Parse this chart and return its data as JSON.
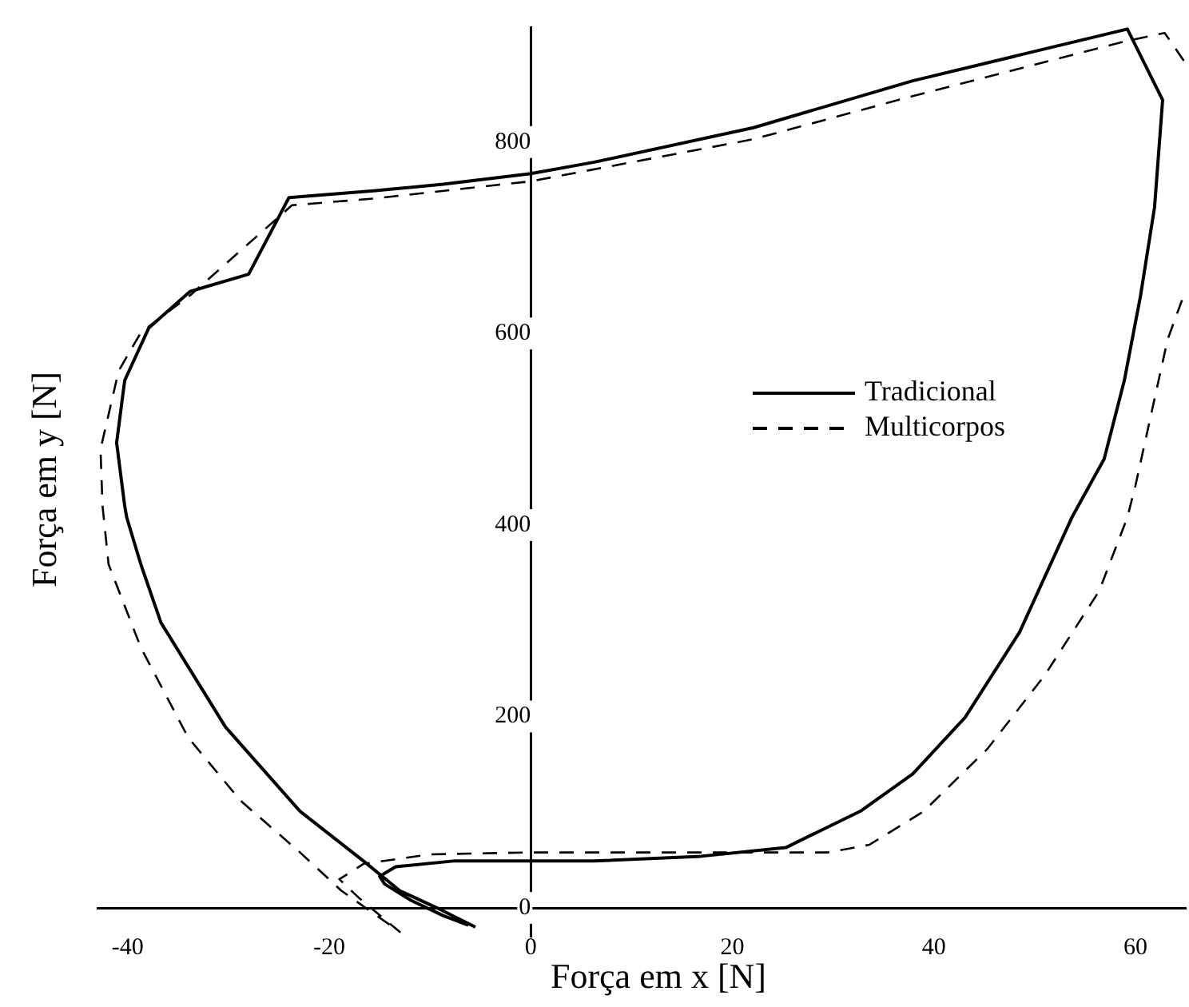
{
  "chart_data": {
    "type": "line",
    "xlabel": "Força em x [N]",
    "ylabel": "Força em y [N]",
    "xlim": [
      -43,
      65
    ],
    "ylim": [
      -30,
      920
    ],
    "xticks": [
      -40,
      -20,
      0,
      20,
      40,
      60
    ],
    "yticks": [
      0,
      200,
      400,
      600,
      800
    ],
    "grid": false,
    "legend": "right",
    "marker": "none",
    "series": [
      {
        "name": "Tradicional",
        "color": "#000000",
        "line_style": "solid",
        "x": [
          -5.5,
          -9.3,
          -13,
          -16.6,
          -22.9,
          -30.3,
          -36.7,
          -38.7,
          -40.1,
          -40.3,
          -41.1,
          -40.3,
          -37.9,
          -33.8,
          -28,
          -24,
          -15.6,
          -8.7,
          0,
          6.3,
          22.1,
          37.9,
          59.2,
          62.7,
          61.9,
          60.5,
          58.9,
          56.9,
          53.7,
          48.5,
          43.1,
          37.9,
          32.7,
          28.4,
          25.3,
          16.9,
          6.3,
          0,
          -7.7,
          -13.4,
          -15,
          -14.5,
          -11.9,
          -8.7,
          -6.2
        ],
        "values": [
          -20,
          0,
          18,
          49,
          101,
          189,
          298,
          359,
          408,
          420,
          486,
          551,
          606,
          644,
          662,
          742,
          749,
          756,
          767,
          779,
          815,
          864,
          918,
          844,
          732,
          639,
          551,
          469,
          408,
          288,
          199,
          140,
          101,
          79,
          63,
          54,
          49,
          49,
          49,
          43,
          33,
          25,
          8,
          -8,
          -18
        ]
      },
      {
        "name": "Multicorpos",
        "color": "#000000",
        "line_style": "dashed",
        "x": [
          64.8,
          62.9,
          58.9,
          37.9,
          22.1,
          0,
          -15.6,
          -23.7,
          -33.8,
          -38.7,
          -40.9,
          -42.7,
          -42.5,
          -41.9,
          -38.7,
          -34,
          -28.8,
          -22.9,
          -18.8,
          -13,
          -17,
          -19,
          -16.6,
          -10,
          0,
          15,
          29.5,
          33.6,
          39,
          45.3,
          51,
          56.4,
          59.2,
          60,
          63.2,
          64.8
        ],
        "values": [
          885,
          914,
          905,
          848,
          803,
          759,
          741,
          734,
          640,
          601,
          561,
          479,
          420,
          359,
          272,
          178,
          112,
          58,
          18,
          -25,
          10,
          30,
          46,
          56,
          58,
          58,
          58,
          66,
          101,
          166,
          243,
          331,
          408,
          441,
          594,
          640
        ]
      }
    ]
  }
}
